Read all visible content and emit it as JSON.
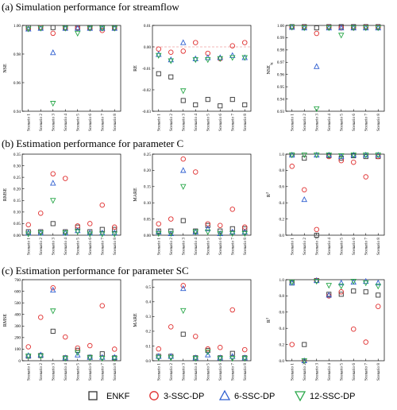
{
  "figure": {
    "sections": [
      {
        "title": "(a) Simulation performance for streamflow"
      },
      {
        "title": "(b) Estimation performance for parameter C"
      },
      {
        "title": "(c) Estimation performance for parameter SC"
      }
    ],
    "legend": [
      {
        "label": "ENKF",
        "marker": "square",
        "color": "#333333"
      },
      {
        "label": "3-SSC-DP",
        "marker": "circle",
        "color": "#e03030"
      },
      {
        "label": "6-SSC-DP",
        "marker": "triangle-up",
        "color": "#2f5fd0"
      },
      {
        "label": "12-SSC-DP",
        "marker": "triangle-down",
        "color": "#2aa84a"
      }
    ]
  },
  "chart_data": [
    {
      "type": "scatter",
      "panel": "a-NSE",
      "ylabel": "NSE",
      "categories": [
        "Scenario 1",
        "Scenario 2",
        "Scenario 3",
        "Scenario 4",
        "Scenario 5",
        "Scenario 6",
        "Scenario 7",
        "Scenario 8"
      ],
      "ylim": [
        0.94,
        1.0
      ],
      "yticks": [
        0.94,
        0.96,
        0.98,
        1.0
      ],
      "ytick_labels": [
        "0.94",
        "0.96",
        "0.98",
        "1.00"
      ],
      "ref_line": null,
      "series": [
        {
          "name": "ENKF",
          "values": [
            0.9985,
            0.9985,
            0.9985,
            0.9985,
            0.9985,
            0.9985,
            0.9985,
            0.9985
          ]
        },
        {
          "name": "3-SSC-DP",
          "values": [
            0.9975,
            0.9985,
            0.9945,
            0.998,
            0.998,
            0.998,
            0.9965,
            0.998
          ]
        },
        {
          "name": "6-SSC-DP",
          "values": [
            0.9975,
            0.998,
            0.981,
            0.998,
            0.998,
            0.998,
            0.998,
            0.998
          ]
        },
        {
          "name": "12-SSC-DP",
          "values": [
            0.9975,
            0.998,
            0.9455,
            0.998,
            0.9945,
            0.998,
            0.998,
            0.998
          ]
        }
      ]
    },
    {
      "type": "scatter",
      "panel": "a-RE",
      "ylabel": "RE",
      "categories": [
        "Scenario 1",
        "Scenario 2",
        "Scenario 3",
        "Scenario 4",
        "Scenario 5",
        "Scenario 6",
        "Scenario 7",
        "Scenario 8"
      ],
      "ylim": [
        -0.03,
        0.01
      ],
      "yticks": [
        -0.03,
        -0.02,
        -0.01,
        0.0,
        0.01
      ],
      "ytick_labels": [
        "-0.03",
        "-0.02",
        "-0.01",
        "0.00",
        "0.01"
      ],
      "ref_line": 0.0,
      "series": [
        {
          "name": "ENKF",
          "values": [
            -0.0125,
            -0.014,
            -0.025,
            -0.027,
            -0.0245,
            -0.0275,
            -0.0245,
            -0.027
          ]
        },
        {
          "name": "3-SSC-DP",
          "values": [
            -0.001,
            -0.0025,
            -0.002,
            0.002,
            -0.003,
            -0.0055,
            0.0005,
            0.002
          ]
        },
        {
          "name": "6-SSC-DP",
          "values": [
            -0.0035,
            -0.006,
            0.002,
            -0.0055,
            -0.005,
            -0.005,
            -0.004,
            -0.005
          ]
        },
        {
          "name": "12-SSC-DP",
          "values": [
            -0.004,
            -0.0065,
            -0.0205,
            -0.006,
            -0.006,
            -0.0055,
            -0.005,
            -0.005
          ]
        }
      ]
    },
    {
      "type": "scatter",
      "panel": "a-NSElg",
      "ylabel": "NSE",
      "ylabel_sub": "lg",
      "categories": [
        "Scenario 1",
        "Scenario 2",
        "Scenario 3",
        "Scenario 4",
        "Scenario 5",
        "Scenario 6",
        "Scenario 7",
        "Scenario 8"
      ],
      "ylim": [
        0.93,
        1.0
      ],
      "yticks": [
        0.93,
        0.94,
        0.95,
        0.96,
        0.97,
        0.98,
        0.99,
        1.0
      ],
      "ytick_labels": [
        "0.93",
        "0.94",
        "0.95",
        "0.96",
        "0.97",
        "0.98",
        "0.99",
        "1.00"
      ],
      "ref_line": null,
      "series": [
        {
          "name": "ENKF",
          "values": [
            0.999,
            0.999,
            0.998,
            0.999,
            0.999,
            0.999,
            0.999,
            0.999
          ]
        },
        {
          "name": "3-SSC-DP",
          "values": [
            0.9985,
            0.9985,
            0.9935,
            0.9985,
            0.998,
            0.998,
            0.9985,
            0.9985
          ]
        },
        {
          "name": "6-SSC-DP",
          "values": [
            0.9985,
            0.998,
            0.9665,
            0.998,
            0.998,
            0.998,
            0.998,
            0.998
          ]
        },
        {
          "name": "12-SSC-DP",
          "values": [
            0.9985,
            0.998,
            0.932,
            0.998,
            0.992,
            0.998,
            0.998,
            0.998
          ]
        }
      ]
    },
    {
      "type": "scatter",
      "panel": "b-RMSE",
      "ylabel": "RMSE",
      "categories": [
        "Scenario 1",
        "Scenario 2",
        "Scenario 3",
        "Scenario 4",
        "Scenario 5",
        "Scenario 6",
        "Scenario 7",
        "Scenario 8"
      ],
      "ylim": [
        0,
        0.35
      ],
      "yticks": [
        0,
        0.05,
        0.1,
        0.15,
        0.2,
        0.25,
        0.3,
        0.35
      ],
      "ytick_labels": [
        "0.00",
        "0.05",
        "0.10",
        "0.15",
        "0.20",
        "0.25",
        "0.30",
        "0.35"
      ],
      "ref_line": null,
      "series": [
        {
          "name": "ENKF",
          "values": [
            0.015,
            0.015,
            0.05,
            0.015,
            0.035,
            0.015,
            0.025,
            0.025
          ]
        },
        {
          "name": "3-SSC-DP",
          "values": [
            0.045,
            0.095,
            0.265,
            0.245,
            0.04,
            0.05,
            0.13,
            0.035
          ]
        },
        {
          "name": "6-SSC-DP",
          "values": [
            0.01,
            0.01,
            0.225,
            0.01,
            0.02,
            0.01,
            0.01,
            0.01
          ]
        },
        {
          "name": "12-SSC-DP",
          "values": [
            0.005,
            0.01,
            0.15,
            0.01,
            0.015,
            0.005,
            0.005,
            0.005
          ]
        }
      ]
    },
    {
      "type": "scatter",
      "panel": "b-MARE",
      "ylabel": "MARE",
      "categories": [
        "Scenario 1",
        "Scenario 2",
        "Scenario 3",
        "Scenario 4",
        "Scenario 5",
        "Scenario 6",
        "Scenario 7",
        "Scenario 8"
      ],
      "ylim": [
        0,
        0.25
      ],
      "yticks": [
        0,
        0.05,
        0.1,
        0.15,
        0.2,
        0.25
      ],
      "ytick_labels": [
        "0.00",
        "0.05",
        "0.10",
        "0.15",
        "0.20",
        "0.25"
      ],
      "ref_line": null,
      "series": [
        {
          "name": "ENKF",
          "values": [
            0.013,
            0.013,
            0.045,
            0.013,
            0.03,
            0.013,
            0.02,
            0.02
          ]
        },
        {
          "name": "3-SSC-DP",
          "values": [
            0.035,
            0.05,
            0.235,
            0.195,
            0.035,
            0.03,
            0.08,
            0.025
          ]
        },
        {
          "name": "6-SSC-DP",
          "values": [
            0.01,
            0.005,
            0.2,
            0.01,
            0.02,
            0.005,
            0.01,
            0.01
          ]
        },
        {
          "name": "12-SSC-DP",
          "values": [
            0.005,
            0.005,
            0.15,
            0.01,
            0.01,
            0.005,
            0.005,
            0.005
          ]
        }
      ]
    },
    {
      "type": "scatter",
      "panel": "b-R2",
      "ylabel": "R",
      "ylabel_sup": "2",
      "categories": [
        "Scenario 1",
        "Scenario 2",
        "Scenario 3",
        "Scenario 4",
        "Scenario 5",
        "Scenario 6",
        "Scenario 7",
        "Scenario 8"
      ],
      "ylim": [
        0,
        1.0
      ],
      "yticks": [
        0,
        0.2,
        0.4,
        0.6,
        0.8,
        1.0
      ],
      "ytick_labels": [
        "0.0",
        "0.2",
        "0.4",
        "0.6",
        "0.8",
        "1.0"
      ],
      "ref_line": null,
      "series": [
        {
          "name": "ENKF",
          "values": [
            0.99,
            0.95,
            0.0,
            0.98,
            0.95,
            0.98,
            0.97,
            0.97
          ]
        },
        {
          "name": "3-SSC-DP",
          "values": [
            0.85,
            0.56,
            0.07,
            0.97,
            0.92,
            0.9,
            0.72,
            0.97
          ]
        },
        {
          "name": "6-SSC-DP",
          "values": [
            0.99,
            0.44,
            0.99,
            0.99,
            0.97,
            0.99,
            0.99,
            0.99
          ]
        },
        {
          "name": "12-SSC-DP",
          "values": [
            0.99,
            0.99,
            0.99,
            0.99,
            0.98,
            0.99,
            0.99,
            0.99
          ]
        }
      ]
    },
    {
      "type": "scatter",
      "panel": "c-RMSE",
      "ylabel": "RMSE",
      "categories": [
        "Scenario 1",
        "Scenario 2",
        "Scenario 3",
        "Scenario 4",
        "Scenario 5",
        "Scenario 6",
        "Scenario 7",
        "Scenario 8"
      ],
      "ylim": [
        0,
        700
      ],
      "yticks": [
        0,
        100,
        200,
        300,
        400,
        500,
        600,
        700
      ],
      "ytick_labels": [
        "0",
        "100",
        "200",
        "300",
        "400",
        "500",
        "600",
        "700"
      ],
      "ref_line": null,
      "series": [
        {
          "name": "ENKF",
          "values": [
            40,
            45,
            255,
            25,
            90,
            30,
            60,
            25
          ]
        },
        {
          "name": "3-SSC-DP",
          "values": [
            120,
            375,
            630,
            205,
            110,
            130,
            475,
            100
          ]
        },
        {
          "name": "6-SSC-DP",
          "values": [
            45,
            50,
            610,
            25,
            50,
            30,
            30,
            30
          ]
        },
        {
          "name": "12-SSC-DP",
          "values": [
            40,
            40,
            430,
            20,
            70,
            25,
            20,
            20
          ]
        }
      ]
    },
    {
      "type": "scatter",
      "panel": "c-MARE",
      "ylabel": "MARE",
      "categories": [
        "Scenario 1",
        "Scenario 2",
        "Scenario 3",
        "Scenario 4",
        "Scenario 5",
        "Scenario 6",
        "Scenario 7",
        "Scenario 8"
      ],
      "ylim": [
        0,
        0.55
      ],
      "yticks": [
        0,
        0.1,
        0.2,
        0.3,
        0.4,
        0.5
      ],
      "ytick_labels": [
        "0.0",
        "0.1",
        "0.2",
        "0.3",
        "0.4",
        "0.5"
      ],
      "ref_line": null,
      "series": [
        {
          "name": "ENKF",
          "values": [
            0.03,
            0.03,
            0.18,
            0.02,
            0.07,
            0.02,
            0.05,
            0.02
          ]
        },
        {
          "name": "3-SSC-DP",
          "values": [
            0.08,
            0.23,
            0.51,
            0.165,
            0.08,
            0.09,
            0.345,
            0.075
          ]
        },
        {
          "name": "6-SSC-DP",
          "values": [
            0.03,
            0.03,
            0.49,
            0.02,
            0.04,
            0.02,
            0.03,
            0.02
          ]
        },
        {
          "name": "12-SSC-DP",
          "values": [
            0.02,
            0.02,
            0.34,
            0.015,
            0.06,
            0.015,
            0.015,
            0.015
          ]
        }
      ]
    },
    {
      "type": "scatter",
      "panel": "c-R2",
      "ylabel": "R",
      "ylabel_sup": "2",
      "categories": [
        "Scenario 1",
        "Scenario 2",
        "Scenario 3",
        "Scenario 4",
        "Scenario 5",
        "Scenario 6",
        "Scenario 7",
        "Scenario 8"
      ],
      "ylim": [
        0,
        1.0
      ],
      "yticks": [
        0,
        0.2,
        0.4,
        0.6,
        0.8,
        1.0
      ],
      "ytick_labels": [
        "0.0",
        "0.2",
        "0.4",
        "0.6",
        "0.8",
        "1.0"
      ],
      "ref_line": null,
      "series": [
        {
          "name": "ENKF",
          "values": [
            0.96,
            0.2,
            0.99,
            0.82,
            0.82,
            0.86,
            0.85,
            0.81
          ]
        },
        {
          "name": "3-SSC-DP",
          "values": [
            0.2,
            0.0,
            0.99,
            0.8,
            0.85,
            0.39,
            0.23,
            0.67
          ]
        },
        {
          "name": "6-SSC-DP",
          "values": [
            0.96,
            0.0,
            0.99,
            0.81,
            0.96,
            0.97,
            0.98,
            0.96
          ]
        },
        {
          "name": "12-SSC-DP",
          "values": [
            0.97,
            0.0,
            0.98,
            0.93,
            0.92,
            0.98,
            0.96,
            0.92
          ]
        }
      ]
    }
  ]
}
